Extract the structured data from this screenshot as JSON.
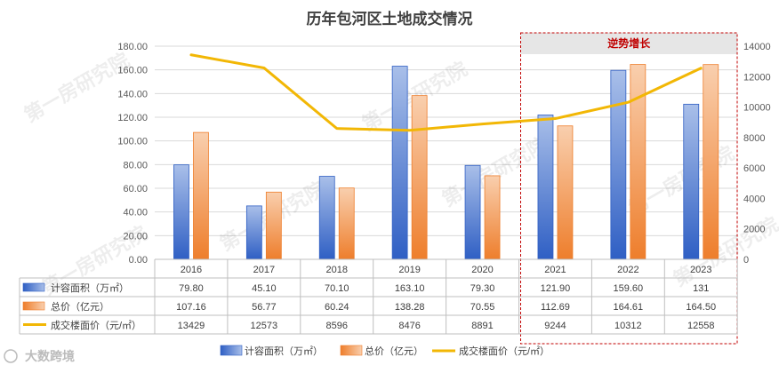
{
  "chart_data": {
    "type": "bar+line",
    "title": "历年包河区土地成交情况",
    "categories": [
      "2016",
      "2017",
      "2018",
      "2019",
      "2020",
      "2021",
      "2022",
      "2023"
    ],
    "series": [
      {
        "name": "计容面积（万㎡）",
        "type": "bar",
        "axis": "left",
        "values": [
          79.8,
          45.1,
          70.1,
          163.1,
          79.3,
          121.9,
          159.6,
          131
        ],
        "labels": [
          "79.80",
          "45.10",
          "70.10",
          "163.10",
          "79.30",
          "121.90",
          "159.60",
          "131"
        ],
        "color_top": "#a9bfe9",
        "color_bottom": "#2f5fc4"
      },
      {
        "name": "总价（亿元）",
        "type": "bar",
        "axis": "left",
        "values": [
          107.16,
          56.77,
          60.24,
          138.28,
          70.55,
          112.69,
          164.61,
          164.5
        ],
        "labels": [
          "107.16",
          "56.77",
          "60.24",
          "138.28",
          "70.55",
          "112.69",
          "164.61",
          "164.50"
        ],
        "color_top": "#f9cfae",
        "color_bottom": "#ee7e2c"
      },
      {
        "name": "成交楼面价（元/㎡）",
        "type": "line",
        "axis": "right",
        "values": [
          13429,
          12573,
          8596,
          8476,
          8891,
          9244,
          10312,
          12558
        ],
        "labels": [
          "13429",
          "12573",
          "8596",
          "8476",
          "8891",
          "9244",
          "10312",
          "12558"
        ],
        "color": "#f2b705"
      }
    ],
    "y_left": {
      "min": 0,
      "max": 180,
      "step": 20,
      "ticks": [
        "0.00",
        "20.00",
        "40.00",
        "60.00",
        "80.00",
        "100.00",
        "120.00",
        "140.00",
        "160.00",
        "180.00"
      ]
    },
    "y_right": {
      "min": 0,
      "max": 14000,
      "step": 2000,
      "ticks": [
        "0",
        "2000",
        "4000",
        "6000",
        "8000",
        "10000",
        "12000",
        "14000"
      ]
    },
    "highlight": {
      "label": "逆势增长",
      "from_category": "2021",
      "to_category": "2023",
      "label_color": "#c00000",
      "border_color": "#c00000",
      "band_color": "#e6e6e6"
    },
    "legend_position": "bottom",
    "grid": true,
    "data_table": true,
    "watermark": "第一房研究院",
    "logo_text": "大数跨境",
    "colors": {
      "grid": "#d9d9d9",
      "axis_text": "#595959",
      "title": "#404040",
      "table_border": "#bfbfbf"
    }
  }
}
